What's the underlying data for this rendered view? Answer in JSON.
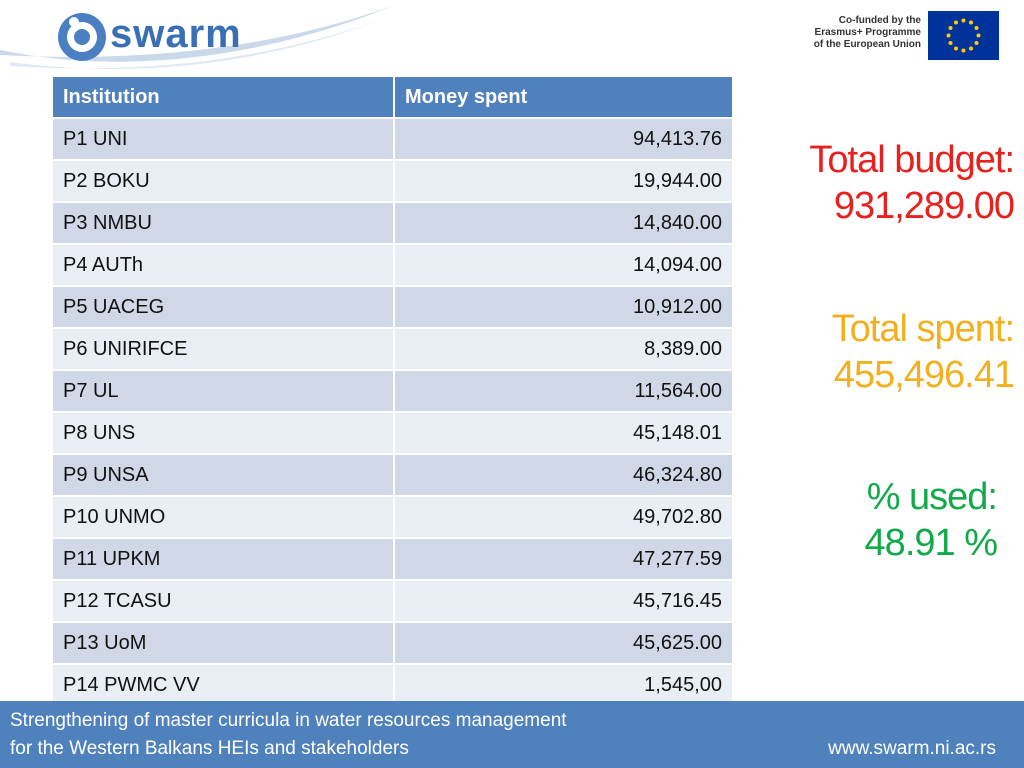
{
  "header": {
    "logo_text": "swarm",
    "cofunded_line1": "Co-funded by the",
    "cofunded_line2": "Erasmus+ Programme",
    "cofunded_line3": "of the European Union"
  },
  "table": {
    "columns": [
      "Institution",
      "Money spent"
    ],
    "rows": [
      {
        "institution": "P1 UNI",
        "money": "94,413.76"
      },
      {
        "institution": "P2 BOKU",
        "money": "19,944.00"
      },
      {
        "institution": "P3 NMBU",
        "money": "14,840.00"
      },
      {
        "institution": "P4 AUTh",
        "money": "14,094.00"
      },
      {
        "institution": "P5 UACEG",
        "money": "10,912.00"
      },
      {
        "institution": "P6 UNIRIFCE",
        "money": "8,389.00"
      },
      {
        "institution": "P7 UL",
        "money": "11,564.00"
      },
      {
        "institution": "P8 UNS",
        "money": "45,148.01"
      },
      {
        "institution": "P9 UNSA",
        "money": "46,324.80"
      },
      {
        "institution": "P10 UNMO",
        "money": "49,702.80"
      },
      {
        "institution": "P11 UPKM",
        "money": "47,277.59"
      },
      {
        "institution": "P12 TCASU",
        "money": "45,716.45"
      },
      {
        "institution": "P13 UoM",
        "money": "45,625.00"
      },
      {
        "institution": "P14 PWMC VV",
        "money": "1,545,00"
      }
    ]
  },
  "stats": {
    "budget_label": "Total budget:",
    "budget_value": "931,289.00",
    "spent_label": "Total spent:",
    "spent_value": "455,496.41",
    "used_label": "% used:",
    "used_value": "48.91 %"
  },
  "footer": {
    "line1": "Strengthening of master curricula in water resources  management",
    "line2": "for the Western Balkans HEIs and stakeholders",
    "url": "www.swarm.ni.ac.rs"
  },
  "colors": {
    "header_blue": "#4f81bd",
    "budget_red": "#e8201e",
    "spent_orange": "#f2b01e",
    "used_green": "#12a94a"
  }
}
